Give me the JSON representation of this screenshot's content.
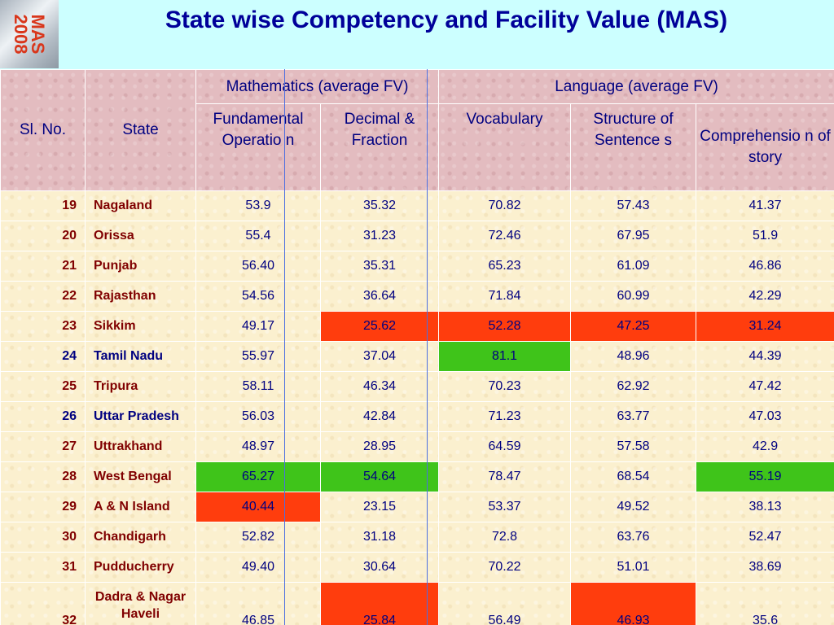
{
  "logo": {
    "line1": "MAS",
    "line2": "2008"
  },
  "title": "State wise Competency and Facility Value (MAS)",
  "headers": {
    "sl_no": "Sl. No.",
    "state": "State",
    "math_group": "Mathematics (average FV)",
    "lang_group": "Language (average FV)",
    "cols": [
      "Fundamental Operatio n",
      "Decimal & Fraction",
      "Vocabulary",
      "Structure of Sentence s",
      "Comprehensio n of story"
    ]
  },
  "rows": [
    {
      "no": "19",
      "state": "Nagaland",
      "v": [
        "53.9",
        "35.32",
        "70.82",
        "57.43",
        "41.37"
      ],
      "hl": [
        "",
        "",
        "",
        "",
        ""
      ],
      "dark": false
    },
    {
      "no": "20",
      "state": "Orissa",
      "v": [
        "55.4",
        "31.23",
        "72.46",
        "67.95",
        "51.9"
      ],
      "hl": [
        "",
        "",
        "",
        "",
        ""
      ],
      "dark": false
    },
    {
      "no": "21",
      "state": "Punjab",
      "v": [
        "56.40",
        "35.31",
        "65.23",
        "61.09",
        "46.86"
      ],
      "hl": [
        "",
        "",
        "",
        "",
        ""
      ],
      "dark": false
    },
    {
      "no": "22",
      "state": "Rajasthan",
      "v": [
        "54.56",
        "36.64",
        "71.84",
        "60.99",
        "42.29"
      ],
      "hl": [
        "",
        "",
        "",
        "",
        ""
      ],
      "dark": false
    },
    {
      "no": "23",
      "state": "Sikkim",
      "v": [
        "49.17",
        "25.62",
        "52.28",
        "47.25",
        "31.24"
      ],
      "hl": [
        "",
        "red",
        "red",
        "red",
        "red"
      ],
      "dark": false
    },
    {
      "no": "24",
      "state": "Tamil Nadu",
      "v": [
        "55.97",
        "37.04",
        "81.1",
        "48.96",
        "44.39"
      ],
      "hl": [
        "",
        "",
        "green",
        "",
        ""
      ],
      "dark": true
    },
    {
      "no": "25",
      "state": "Tripura",
      "v": [
        "58.11",
        "46.34",
        "70.23",
        "62.92",
        "47.42"
      ],
      "hl": [
        "",
        "",
        "",
        "",
        ""
      ],
      "dark": false
    },
    {
      "no": "26",
      "state": "Uttar Pradesh",
      "v": [
        "56.03",
        "42.84",
        "71.23",
        "63.77",
        "47.03"
      ],
      "hl": [
        "",
        "",
        "",
        "",
        ""
      ],
      "dark": true
    },
    {
      "no": "27",
      "state": "Uttrakhand",
      "v": [
        "48.97",
        "28.95",
        "64.59",
        "57.58",
        "42.9"
      ],
      "hl": [
        "",
        "",
        "",
        "",
        ""
      ],
      "dark": false
    },
    {
      "no": "28",
      "state": "West Bengal",
      "v": [
        "65.27",
        "54.64",
        "78.47",
        "68.54",
        "55.19"
      ],
      "hl": [
        "green",
        "green",
        "",
        "",
        "green"
      ],
      "dark": false
    },
    {
      "no": "29",
      "state": "A & N Island",
      "v": [
        "40.44",
        "23.15",
        "53.37",
        "49.52",
        "38.13"
      ],
      "hl": [
        "red",
        "",
        "",
        "",
        ""
      ],
      "dark": false
    },
    {
      "no": "30",
      "state": "Chandigarh",
      "v": [
        "52.82",
        "31.18",
        "72.8",
        "63.76",
        "52.47"
      ],
      "hl": [
        "",
        "",
        "",
        "",
        ""
      ],
      "dark": false
    },
    {
      "no": "31",
      "state": "Pudducherry",
      "v": [
        "49.40",
        "30.64",
        "70.22",
        "51.01",
        "38.69"
      ],
      "hl": [
        "",
        "",
        "",
        "",
        ""
      ],
      "dark": false
    },
    {
      "no": "32",
      "state": "Dadra & Nagar Haveli",
      "v": [
        "46.85",
        "25.84",
        "56.49",
        "46.93",
        "35.6"
      ],
      "hl": [
        "",
        "red",
        "",
        "red",
        ""
      ],
      "dark": false
    }
  ],
  "colors": {
    "background": "#ccffff",
    "title": "#000099",
    "header_bg": "#e3bcc0",
    "row_bg": "#fbf0cf",
    "low": "#ff3d0d",
    "high": "#3fc41a",
    "label": "#800000",
    "value": "#000080"
  }
}
